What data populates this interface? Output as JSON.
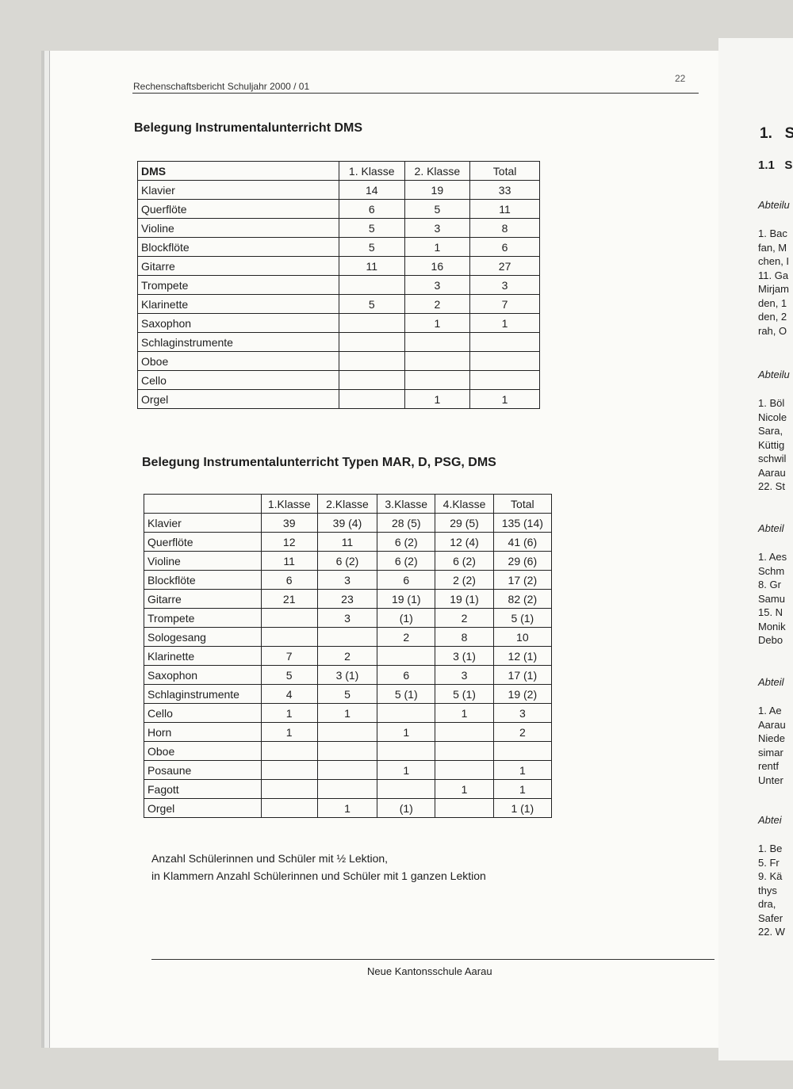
{
  "header": {
    "title": "Rechenschaftsbericht Schuljahr 2000 / 01",
    "page_number": "22"
  },
  "section1": {
    "title": "Belegung Instrumentalunterricht DMS",
    "table": {
      "header": [
        "DMS",
        "1. Klasse",
        "2. Klasse",
        "Total"
      ],
      "rows": [
        [
          "Klavier",
          14,
          19,
          33
        ],
        [
          "Querflöte",
          6,
          5,
          11
        ],
        [
          "Violine",
          5,
          3,
          8
        ],
        [
          "Blockflöte",
          5,
          1,
          6
        ],
        [
          "Gitarre",
          11,
          16,
          27
        ],
        [
          "Trompete",
          null,
          3,
          3
        ],
        [
          "Klarinette",
          5,
          2,
          7
        ],
        [
          "Saxophon",
          null,
          1,
          1
        ],
        [
          "Schlaginstrumente",
          null,
          null,
          null
        ],
        [
          "Oboe",
          null,
          null,
          null
        ],
        [
          "Cello",
          null,
          null,
          null
        ],
        [
          "Orgel",
          null,
          1,
          1
        ]
      ]
    }
  },
  "section2": {
    "title": "Belegung Instrumentalunterricht Typen MAR, D, PSG, DMS",
    "table": {
      "header": [
        null,
        "1.Klasse",
        "2.Klasse",
        "3.Klasse",
        "4.Klasse",
        "Total"
      ],
      "rows": [
        [
          "Klavier",
          39,
          "39 (4)",
          "28 (5)",
          "29 (5)",
          "135 (14)"
        ],
        [
          "Querflöte",
          12,
          11,
          "6 (2)",
          "12 (4)",
          "41 (6)"
        ],
        [
          "Violine",
          11,
          "6 (2)",
          "6 (2)",
          "6 (2)",
          "29 (6)"
        ],
        [
          "Blockflöte",
          6,
          3,
          6,
          "2 (2)",
          "17 (2)"
        ],
        [
          "Gitarre",
          21,
          23,
          "19 (1)",
          "19 (1)",
          "82 (2)"
        ],
        [
          "Trompete",
          null,
          3,
          "(1)",
          2,
          "5 (1)"
        ],
        [
          "Sologesang",
          null,
          null,
          2,
          8,
          10
        ],
        [
          "Klarinette",
          7,
          2,
          null,
          "3 (1)",
          "12 (1)"
        ],
        [
          "Saxophon",
          5,
          "3 (1)",
          6,
          3,
          "17 (1)"
        ],
        [
          "Schlaginstrumente",
          4,
          5,
          "5 (1)",
          "5 (1)",
          "19 (2)"
        ],
        [
          "Cello",
          1,
          1,
          null,
          1,
          3
        ],
        [
          "Horn",
          1,
          null,
          1,
          null,
          2
        ],
        [
          "Oboe",
          null,
          null,
          null,
          null,
          null
        ],
        [
          "Posaune",
          null,
          null,
          1,
          null,
          1
        ],
        [
          "Fagott",
          null,
          null,
          null,
          1,
          1
        ],
        [
          "Orgel",
          null,
          1,
          "(1)",
          null,
          "1 (1)"
        ]
      ]
    },
    "notes": [
      "Anzahl Schülerinnen und Schüler mit ½ Lektion,",
      "in Klammern Anzahl Schülerinnen und Schüler mit 1 ganzen Lektion"
    ]
  },
  "footer": {
    "text": "Neue Kantonsschule Aarau"
  },
  "next_page": {
    "heading": "1.   S",
    "subheading": "1.1   S",
    "blocks": [
      {
        "title": "Abteilu",
        "lines": [
          "1. Bac",
          "fan, M",
          "chen, I",
          "11. Ga",
          "Mirjam",
          "den, 1",
          "den, 2",
          "rah, O"
        ]
      },
      {
        "title": "Abteilu",
        "lines": [
          "1. Böl",
          "Nicole",
          "Sara,",
          "Küttig",
          "schwil",
          "Aarau",
          "22. St"
        ]
      },
      {
        "title": "Abteil",
        "lines": [
          "1. Aes",
          "Schm",
          "8. Gr",
          "Samu",
          "15. N",
          "Monik",
          "Debo"
        ]
      },
      {
        "title": "Abteil",
        "lines": [
          "1. Ae",
          "Aarau",
          "Niede",
          "simar",
          "rentf",
          "Unter"
        ]
      },
      {
        "title": "Abtei",
        "lines": [
          "1. Be",
          "5. Fr",
          "9. Kä",
          "thys",
          "dra,",
          "Safer",
          "22. W"
        ]
      }
    ]
  }
}
